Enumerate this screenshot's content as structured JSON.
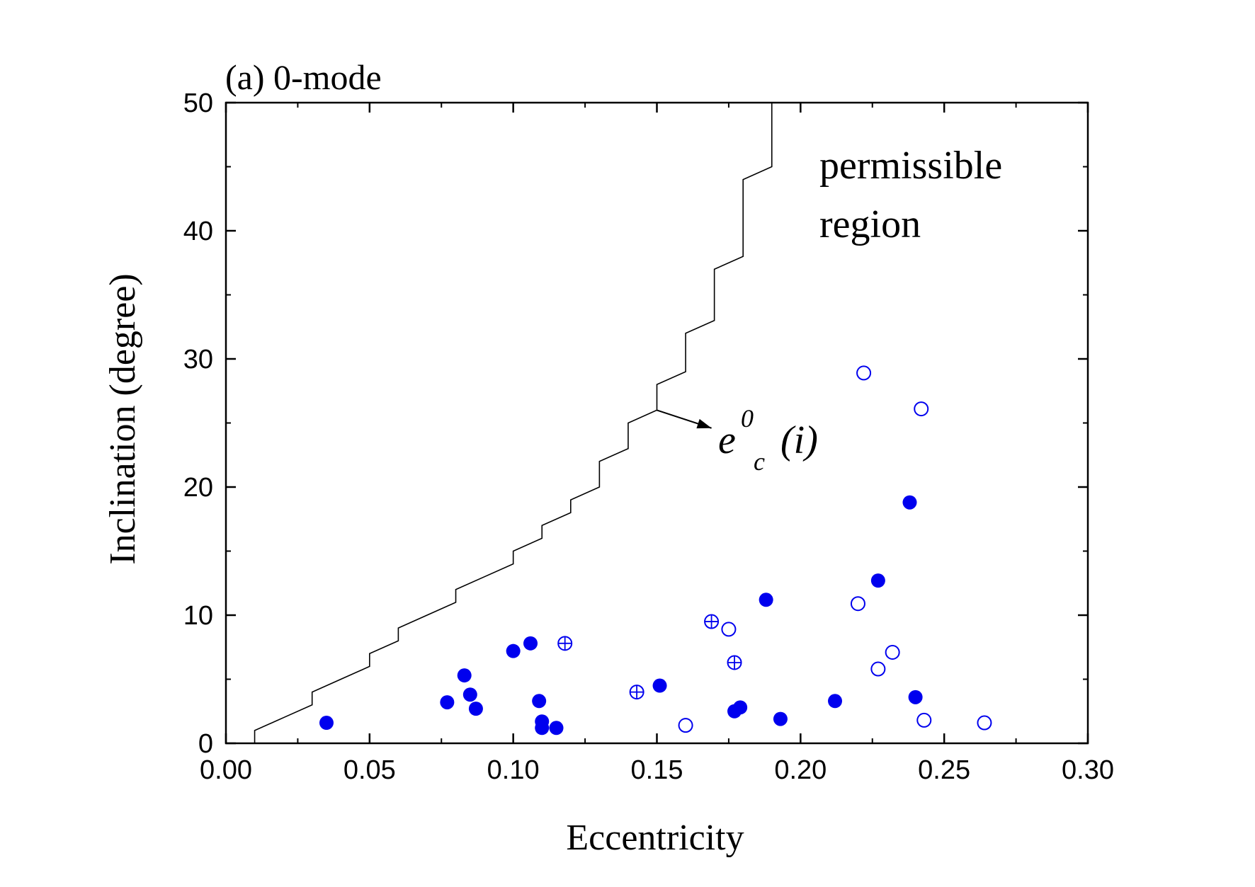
{
  "chart_data": {
    "type": "scatter",
    "title": "(a) 0-mode",
    "xlabel": "Eccentricity",
    "ylabel": "Inclination (degree)",
    "xlim": [
      0.0,
      0.3
    ],
    "ylim": [
      0,
      50
    ],
    "xticks": [
      0.0,
      0.05,
      0.1,
      0.15,
      0.2,
      0.25,
      0.3
    ],
    "xtick_labels": [
      "0.00",
      "0.05",
      "0.10",
      "0.15",
      "0.20",
      "0.25",
      "0.30"
    ],
    "yticks": [
      0,
      10,
      20,
      30,
      40,
      50
    ],
    "ytick_labels": [
      "0",
      "10",
      "20",
      "30",
      "40",
      "50"
    ],
    "grid": false,
    "colors": {
      "marker": "#0000ee",
      "curve": "#000000",
      "axes": "#000000"
    },
    "region_label_lines": [
      "permissible",
      "region"
    ],
    "curve_label": {
      "base": "e",
      "superscript": "0",
      "subscript": "c",
      "argument": "(i)"
    },
    "annotation_point": [
      0.15,
      26
    ],
    "annotation_arrow_tip": [
      0.169,
      24.6
    ],
    "critical_curve": {
      "name": "e0c(i)",
      "points": [
        [
          0.01,
          0
        ],
        [
          0.01,
          1
        ],
        [
          0.02,
          2
        ],
        [
          0.03,
          3
        ],
        [
          0.03,
          4
        ],
        [
          0.04,
          5
        ],
        [
          0.05,
          6
        ],
        [
          0.05,
          7
        ],
        [
          0.06,
          8
        ],
        [
          0.06,
          9
        ],
        [
          0.07,
          10
        ],
        [
          0.08,
          11
        ],
        [
          0.08,
          12
        ],
        [
          0.09,
          13
        ],
        [
          0.1,
          14
        ],
        [
          0.1,
          15
        ],
        [
          0.11,
          16
        ],
        [
          0.11,
          17
        ],
        [
          0.12,
          18
        ],
        [
          0.12,
          19
        ],
        [
          0.13,
          20
        ],
        [
          0.13,
          22
        ],
        [
          0.14,
          23
        ],
        [
          0.14,
          25
        ],
        [
          0.15,
          26
        ],
        [
          0.15,
          28
        ],
        [
          0.16,
          29
        ],
        [
          0.16,
          32
        ],
        [
          0.17,
          33
        ],
        [
          0.17,
          37
        ],
        [
          0.18,
          38
        ],
        [
          0.18,
          44
        ],
        [
          0.19,
          45
        ],
        [
          0.19,
          50
        ]
      ]
    },
    "series": [
      {
        "name": "filled",
        "marker": "filled-circle",
        "points": [
          [
            0.035,
            1.6
          ],
          [
            0.077,
            3.2
          ],
          [
            0.083,
            5.3
          ],
          [
            0.085,
            3.8
          ],
          [
            0.087,
            2.7
          ],
          [
            0.1,
            7.2
          ],
          [
            0.106,
            7.8
          ],
          [
            0.109,
            3.3
          ],
          [
            0.11,
            1.7
          ],
          [
            0.11,
            1.2
          ],
          [
            0.115,
            1.2
          ],
          [
            0.151,
            4.5
          ],
          [
            0.177,
            2.5
          ],
          [
            0.179,
            2.8
          ],
          [
            0.188,
            11.2
          ],
          [
            0.193,
            1.9
          ],
          [
            0.212,
            3.3
          ],
          [
            0.227,
            12.7
          ],
          [
            0.238,
            18.8
          ],
          [
            0.24,
            3.6
          ]
        ]
      },
      {
        "name": "open",
        "marker": "open-circle",
        "points": [
          [
            0.16,
            1.4
          ],
          [
            0.175,
            8.9
          ],
          [
            0.22,
            10.9
          ],
          [
            0.222,
            28.9
          ],
          [
            0.227,
            5.8
          ],
          [
            0.232,
            7.1
          ],
          [
            0.242,
            26.1
          ],
          [
            0.243,
            1.8
          ],
          [
            0.264,
            1.6
          ]
        ]
      },
      {
        "name": "crossed",
        "marker": "crossed-circle",
        "points": [
          [
            0.118,
            7.8
          ],
          [
            0.143,
            4.0
          ],
          [
            0.169,
            9.5
          ],
          [
            0.177,
            6.3
          ]
        ]
      }
    ]
  }
}
